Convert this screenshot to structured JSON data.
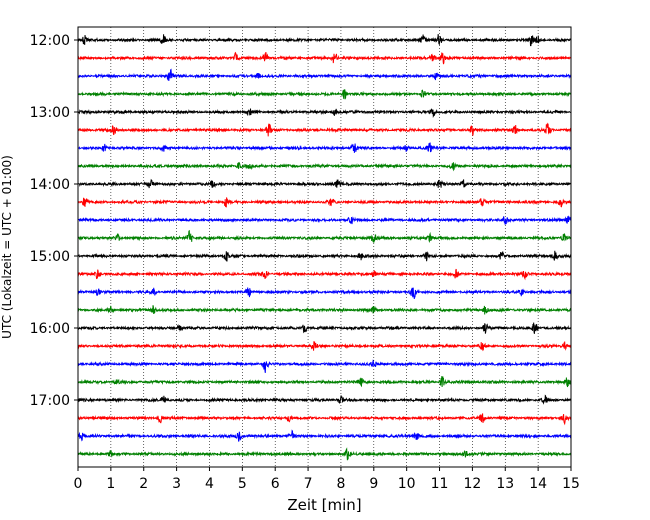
{
  "chart_data": {
    "type": "line",
    "subtype": "helicorder",
    "xlabel": "Zeit  [min]",
    "ylabel": "UTC (Lokalzeit = UTC + 01:00)",
    "xlim": [
      0,
      15
    ],
    "x_ticks": [
      "0",
      "1",
      "2",
      "3",
      "4",
      "5",
      "6",
      "7",
      "8",
      "9",
      "10",
      "11",
      "12",
      "13",
      "14",
      "15"
    ],
    "grid": "vertical dotted",
    "traces_per_hour": 4,
    "trace_minutes": 15,
    "hour_labels": [
      "12:00",
      "13:00",
      "14:00",
      "15:00",
      "16:00",
      "17:00"
    ],
    "trace_colors": [
      "#000000",
      "#ff0000",
      "#0000ff",
      "#008000"
    ],
    "traces": [
      {
        "start": "12:00",
        "events": [
          [
            0.2,
            1.0
          ],
          [
            2.6,
            1.0
          ],
          [
            10.5,
            0.9
          ],
          [
            11.0,
            1.4
          ],
          [
            13.8,
            1.2
          ],
          [
            14.0,
            0.8
          ]
        ]
      },
      {
        "start": "12:15",
        "events": [
          [
            4.8,
            1.0
          ],
          [
            5.7,
            1.3
          ],
          [
            7.8,
            1.6
          ],
          [
            11.1,
            1.2
          ],
          [
            10.8,
            0.9
          ]
        ]
      },
      {
        "start": "12:30",
        "events": [
          [
            2.8,
            1.3
          ],
          [
            5.5,
            0.6
          ],
          [
            10.9,
            0.8
          ]
        ]
      },
      {
        "start": "12:45",
        "events": [
          [
            8.1,
            1.0
          ],
          [
            10.5,
            0.7
          ]
        ]
      },
      {
        "start": "13:00",
        "events": [
          [
            5.2,
            0.8
          ],
          [
            7.8,
            0.9
          ],
          [
            10.8,
            0.9
          ]
        ]
      },
      {
        "start": "13:15",
        "events": [
          [
            1.1,
            1.0
          ],
          [
            5.8,
            1.2
          ],
          [
            12.0,
            1.0
          ],
          [
            13.3,
            1.1
          ],
          [
            14.3,
            1.3
          ]
        ]
      },
      {
        "start": "13:30",
        "events": [
          [
            0.8,
            0.7
          ],
          [
            2.6,
            0.6
          ],
          [
            8.4,
            1.2
          ],
          [
            10.0,
            0.8
          ],
          [
            10.7,
            1.1
          ]
        ]
      },
      {
        "start": "13:45",
        "events": [
          [
            4.9,
            0.7
          ],
          [
            5.2,
            0.6
          ],
          [
            11.4,
            0.7
          ]
        ]
      },
      {
        "start": "14:00",
        "events": [
          [
            2.2,
            0.9
          ],
          [
            4.1,
            0.8
          ],
          [
            7.9,
            0.9
          ],
          [
            11.0,
            0.9
          ],
          [
            11.7,
            1.0
          ]
        ]
      },
      {
        "start": "14:15",
        "events": [
          [
            0.2,
            0.9
          ],
          [
            4.5,
            0.9
          ],
          [
            7.7,
            0.8
          ],
          [
            12.3,
            0.9
          ],
          [
            14.7,
            0.8
          ]
        ]
      },
      {
        "start": "14:30",
        "events": [
          [
            8.3,
            0.8
          ],
          [
            13.0,
            1.0
          ],
          [
            14.9,
            0.7
          ]
        ]
      },
      {
        "start": "14:45",
        "events": [
          [
            1.2,
            0.7
          ],
          [
            3.4,
            1.4
          ],
          [
            9.0,
            0.9
          ],
          [
            10.7,
            0.8
          ],
          [
            14.8,
            0.9
          ]
        ]
      },
      {
        "start": "15:00",
        "events": [
          [
            4.5,
            1.2
          ],
          [
            8.6,
            0.7
          ],
          [
            10.6,
            0.9
          ],
          [
            12.9,
            0.8
          ],
          [
            14.5,
            1.0
          ]
        ]
      },
      {
        "start": "15:15",
        "events": [
          [
            0.6,
            1.0
          ],
          [
            5.7,
            0.8
          ],
          [
            9.0,
            0.7
          ],
          [
            11.5,
            0.8
          ],
          [
            13.6,
            0.7
          ]
        ]
      },
      {
        "start": "15:30",
        "events": [
          [
            0.6,
            0.8
          ],
          [
            2.3,
            0.8
          ],
          [
            5.2,
            0.9
          ],
          [
            10.2,
            1.6
          ],
          [
            13.5,
            0.7
          ]
        ]
      },
      {
        "start": "15:45",
        "events": [
          [
            1.0,
            0.7
          ],
          [
            2.3,
            0.9
          ],
          [
            9.0,
            0.8
          ],
          [
            12.4,
            0.9
          ]
        ]
      },
      {
        "start": "16:00",
        "events": [
          [
            3.1,
            0.8
          ],
          [
            6.9,
            1.1
          ],
          [
            12.4,
            1.0
          ],
          [
            13.9,
            1.2
          ]
        ]
      },
      {
        "start": "16:15",
        "events": [
          [
            7.2,
            1.2
          ],
          [
            12.3,
            0.8
          ],
          [
            14.8,
            0.9
          ]
        ]
      },
      {
        "start": "16:30",
        "events": [
          [
            5.7,
            2.0
          ],
          [
            9.0,
            0.6
          ]
        ]
      },
      {
        "start": "16:45",
        "events": [
          [
            1.2,
            0.6
          ],
          [
            8.6,
            0.8
          ],
          [
            11.1,
            1.4
          ],
          [
            14.9,
            1.1
          ]
        ]
      },
      {
        "start": "17:00",
        "events": [
          [
            2.6,
            1.0
          ],
          [
            8.0,
            0.9
          ],
          [
            14.2,
            0.7
          ]
        ]
      },
      {
        "start": "17:15",
        "events": [
          [
            2.5,
            0.9
          ],
          [
            6.4,
            0.7
          ],
          [
            12.3,
            1.0
          ],
          [
            14.8,
            1.0
          ]
        ]
      },
      {
        "start": "17:30",
        "events": [
          [
            0.1,
            0.9
          ],
          [
            4.9,
            1.0
          ],
          [
            6.5,
            1.0
          ],
          [
            10.3,
            0.7
          ]
        ]
      },
      {
        "start": "17:45",
        "events": [
          [
            1.0,
            0.6
          ],
          [
            8.2,
            1.1
          ],
          [
            11.8,
            0.6
          ]
        ]
      }
    ]
  }
}
